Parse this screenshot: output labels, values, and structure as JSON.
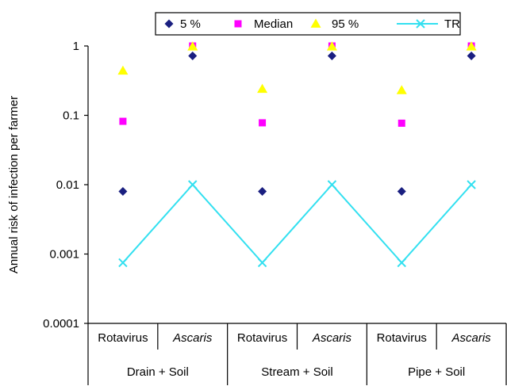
{
  "chart_data": {
    "type": "scatter",
    "ylabel": "Annual risk of infection per farmer",
    "yscale": "log",
    "ylim": [
      0.0001,
      1
    ],
    "yticks": [
      {
        "value": 1,
        "label": "1"
      },
      {
        "value": 0.1,
        "label": "0.1"
      },
      {
        "value": 0.01,
        "label": "0.01"
      },
      {
        "value": 0.001,
        "label": "0.001"
      },
      {
        "value": 0.0001,
        "label": "0.0001"
      }
    ],
    "categories": [
      "Rotavirus",
      "Ascaris",
      "Rotavirus",
      "Ascaris",
      "Rotavirus",
      "Ascaris"
    ],
    "italic_categories": [
      "Ascaris"
    ],
    "groups": [
      {
        "label": "Drain + Soil",
        "span": 2
      },
      {
        "label": "Stream + Soil",
        "span": 2
      },
      {
        "label": "Pipe + Soil",
        "span": 2
      }
    ],
    "legend_position": "top",
    "grid": false,
    "series": [
      {
        "name": "5 %",
        "marker": "diamond",
        "color": "#1a1f80",
        "values": [
          0.008,
          0.72,
          0.008,
          0.72,
          0.008,
          0.72
        ]
      },
      {
        "name": "Median",
        "marker": "square",
        "color": "#ff00ff",
        "values": [
          0.082,
          1.0,
          0.078,
          1.0,
          0.077,
          1.0
        ]
      },
      {
        "name": "95 %",
        "marker": "triangle",
        "color": "#ffff00",
        "values": [
          0.44,
          0.98,
          0.24,
          0.98,
          0.23,
          0.98
        ]
      },
      {
        "name": "TR",
        "marker": "x-line",
        "color": "#33e0f0",
        "values": [
          0.00075,
          0.01,
          0.00075,
          0.01,
          0.00075,
          0.01
        ]
      }
    ]
  }
}
